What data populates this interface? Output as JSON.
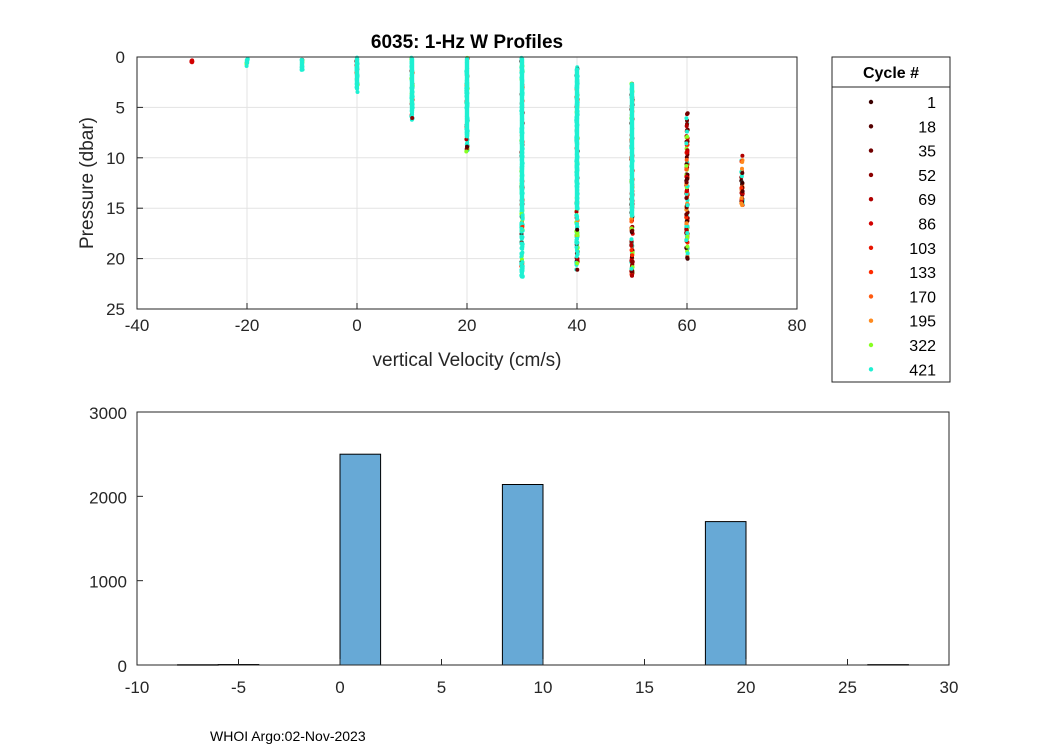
{
  "footer": "WHOI Argo:02-Nov-2023",
  "chart_data": [
    {
      "type": "scatter",
      "title": "6035: 1-Hz W Profiles",
      "xlabel": "vertical Velocity (cm/s)",
      "ylabel": "Pressure (dbar)",
      "xlim": [
        -40,
        80
      ],
      "ylim": [
        0,
        25
      ],
      "y_reversed": true,
      "xticks": [
        -40,
        -20,
        0,
        20,
        40,
        60,
        80
      ],
      "yticks": [
        0,
        5,
        10,
        15,
        20,
        25
      ],
      "grid": true,
      "legend_title": "Cycle #",
      "legend_position": "outside-right",
      "series": [
        {
          "name": "1",
          "color": "#3a0000"
        },
        {
          "name": "18",
          "color": "#550000"
        },
        {
          "name": "35",
          "color": "#700000"
        },
        {
          "name": "52",
          "color": "#8b0000"
        },
        {
          "name": "69",
          "color": "#b00000"
        },
        {
          "name": "86",
          "color": "#d20000"
        },
        {
          "name": "103",
          "color": "#e81400"
        },
        {
          "name": "133",
          "color": "#ff2a00"
        },
        {
          "name": "170",
          "color": "#ff5a10"
        },
        {
          "name": "195",
          "color": "#ff8a1e"
        },
        {
          "name": "322",
          "color": "#88ff22"
        },
        {
          "name": "421",
          "color": "#1ef0d2"
        }
      ],
      "columns": [
        {
          "x": -30,
          "pmin": 0.3,
          "pmax": 0.6
        },
        {
          "x": -20,
          "pmin": 0.1,
          "pmax": 0.9
        },
        {
          "x": -10,
          "pmin": 0.1,
          "pmax": 1.4
        },
        {
          "x": 0,
          "pmin": 0.0,
          "pmax": 3.5
        },
        {
          "x": 10,
          "pmin": 0.0,
          "pmax": 6.5
        },
        {
          "x": 20,
          "pmin": 0.0,
          "pmax": 9.5
        },
        {
          "x": 30,
          "pmin": 0.0,
          "pmax": 22.0
        },
        {
          "x": 40,
          "pmin": 1.0,
          "pmax": 21.3
        },
        {
          "x": 50,
          "pmin": 2.5,
          "pmax": 21.7
        },
        {
          "x": 60,
          "pmin": 4.9,
          "pmax": 20.2
        },
        {
          "x": 70,
          "pmin": 9.7,
          "pmax": 14.7
        }
      ]
    },
    {
      "type": "bar",
      "title": "",
      "xlabel": "",
      "ylabel": "",
      "xlim": [
        -10,
        30
      ],
      "ylim": [
        0,
        3000
      ],
      "xticks": [
        -10,
        -5,
        0,
        5,
        10,
        15,
        20,
        25,
        30
      ],
      "yticks": [
        0,
        1000,
        2000,
        3000
      ],
      "bar_color": "#67a9d6",
      "bins": [
        {
          "from": -8,
          "to": -6,
          "value": 4
        },
        {
          "from": -6,
          "to": -4,
          "value": 6
        },
        {
          "from": 0,
          "to": 2,
          "value": 2500
        },
        {
          "from": 8,
          "to": 10,
          "value": 2140
        },
        {
          "from": 18,
          "to": 20,
          "value": 1700
        },
        {
          "from": 26,
          "to": 28,
          "value": 5
        }
      ]
    }
  ]
}
